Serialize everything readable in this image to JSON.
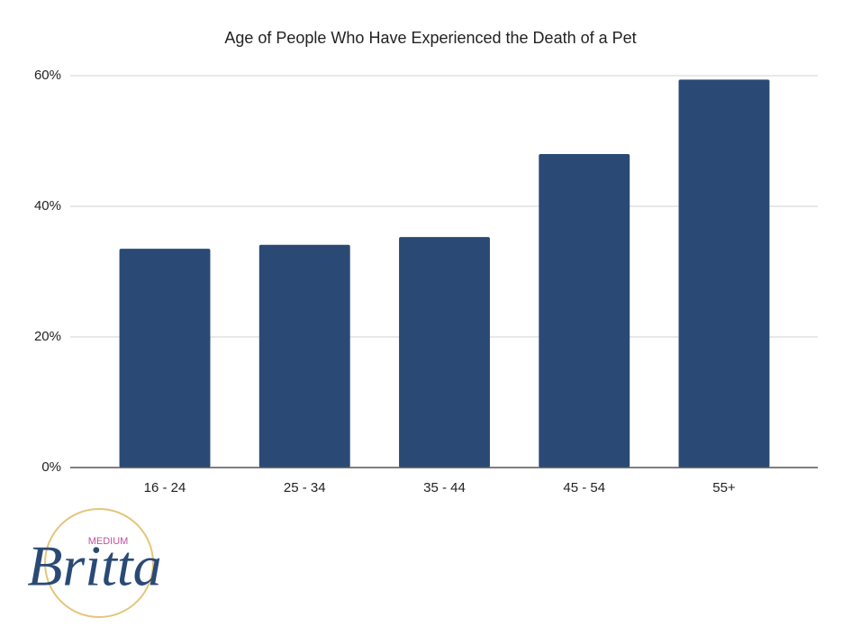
{
  "chart_data": {
    "type": "bar",
    "title": "Age of People Who Have Experienced the Death of a Pet",
    "categories": [
      "16 - 24",
      "25 - 34",
      "35 - 44",
      "45 - 54",
      "55+"
    ],
    "values": [
      33.5,
      34.1,
      35.3,
      48.0,
      59.4
    ],
    "color": "#2a4a75",
    "ylim": [
      0,
      60
    ],
    "yticks": [
      {
        "value": 0,
        "label": "0%"
      },
      {
        "value": 20,
        "label": "20%"
      },
      {
        "value": 40,
        "label": "40%"
      },
      {
        "value": 60,
        "label": "60%"
      }
    ],
    "grid": true
  },
  "logo": {
    "small": "MEDIUM",
    "name": "Britta"
  }
}
